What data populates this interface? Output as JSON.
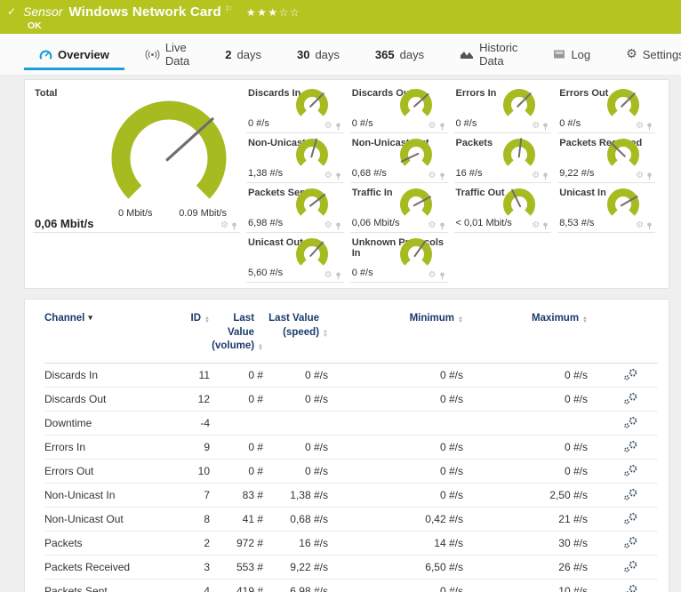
{
  "colors": {
    "header_green": "#b6c41f",
    "gauge_green": "#a6bb20",
    "needle_gray": "#6e6e6e",
    "accent_blue": "#1b9fd8",
    "table_header_blue": "#1b3a6b"
  },
  "header": {
    "check_icon": "✓",
    "kind_label": "Sensor",
    "title": "Windows Network Card",
    "flag_icon": "⚐",
    "priority_filled": 3,
    "priority_total": 5,
    "status": "OK"
  },
  "tabs": [
    {
      "label": "Overview",
      "icon": "gauge-icon",
      "active": true
    },
    {
      "label": "Live Data",
      "icon": "broadcast-icon",
      "active": false
    },
    {
      "prefix": "2",
      "label": "days",
      "active": false
    },
    {
      "prefix": "30",
      "label": "days",
      "active": false
    },
    {
      "prefix": "365",
      "label": "days",
      "active": false
    },
    {
      "label": "Historic Data",
      "icon": "chart-icon",
      "active": false
    },
    {
      "label": "Log",
      "icon": "log-icon",
      "active": false
    },
    {
      "label": "Settings",
      "icon": "gear-icon",
      "active": false
    }
  ],
  "overview": {
    "total": {
      "name": "Total",
      "value": "0,06 Mbit/s",
      "scale_min": "0 Mbit/s",
      "scale_max": "0.09 Mbit/s",
      "needle_deg": 42
    },
    "gauges": [
      {
        "name": "Discards In",
        "value": "0 #/s",
        "needle_deg": 45
      },
      {
        "name": "Discards Out",
        "value": "0 #/s",
        "needle_deg": 42
      },
      {
        "name": "Errors In",
        "value": "0 #/s",
        "needle_deg": 45
      },
      {
        "name": "Errors Out",
        "value": "0 #/s",
        "needle_deg": 45
      },
      {
        "name": "Non-Unicast In",
        "value": "1,38 #/s",
        "needle_deg": 74
      },
      {
        "name": "Non-Unicast Out",
        "value": "0,68 #/s",
        "needle_deg": 205
      },
      {
        "name": "Packets",
        "value": "16 #/s",
        "needle_deg": 83
      },
      {
        "name": "Packets Received",
        "value": "9,22 #/s",
        "needle_deg": 136
      },
      {
        "name": "Packets Sent",
        "value": "6,98 #/s",
        "needle_deg": 38
      },
      {
        "name": "Traffic In",
        "value": "0,06 Mbit/s",
        "needle_deg": 28
      },
      {
        "name": "Traffic Out",
        "value": "< 0,01 Mbit/s",
        "needle_deg": 116
      },
      {
        "name": "Unicast In",
        "value": "8,53 #/s",
        "needle_deg": 30
      },
      {
        "name": "Unicast Out",
        "value": "5,60 #/s",
        "needle_deg": 48
      },
      {
        "name": "Unknown Protocols In",
        "value": "0 #/s",
        "needle_deg": 55
      }
    ]
  },
  "table": {
    "columns": [
      {
        "label": "Channel",
        "align": "left",
        "sort": "active"
      },
      {
        "label": "ID",
        "align": "right",
        "sort": "both"
      },
      {
        "label": "Last Value\n(volume)",
        "align": "right",
        "sort": "both"
      },
      {
        "label": "Last Value\n(speed)",
        "align": "right",
        "sort": "both"
      },
      {
        "label": "Minimum",
        "align": "right",
        "sort": "both"
      },
      {
        "label": "Maximum",
        "align": "right",
        "sort": "both"
      }
    ],
    "rows": [
      {
        "channel": "Discards In",
        "id": "11",
        "volume": "0 #",
        "speed": "0 #/s",
        "min": "0 #/s",
        "max": "0 #/s"
      },
      {
        "channel": "Discards Out",
        "id": "12",
        "volume": "0 #",
        "speed": "0 #/s",
        "min": "0 #/s",
        "max": "0 #/s"
      },
      {
        "channel": "Downtime",
        "id": "-4",
        "volume": "",
        "speed": "",
        "min": "",
        "max": ""
      },
      {
        "channel": "Errors In",
        "id": "9",
        "volume": "0 #",
        "speed": "0 #/s",
        "min": "0 #/s",
        "max": "0 #/s"
      },
      {
        "channel": "Errors Out",
        "id": "10",
        "volume": "0 #",
        "speed": "0 #/s",
        "min": "0 #/s",
        "max": "0 #/s"
      },
      {
        "channel": "Non-Unicast In",
        "id": "7",
        "volume": "83 #",
        "speed": "1,38 #/s",
        "min": "0 #/s",
        "max": "2,50 #/s"
      },
      {
        "channel": "Non-Unicast Out",
        "id": "8",
        "volume": "41 #",
        "speed": "0,68 #/s",
        "min": "0,42 #/s",
        "max": "21 #/s"
      },
      {
        "channel": "Packets",
        "id": "2",
        "volume": "972 #",
        "speed": "16 #/s",
        "min": "14 #/s",
        "max": "30 #/s"
      },
      {
        "channel": "Packets Received",
        "id": "3",
        "volume": "553 #",
        "speed": "9,22 #/s",
        "min": "6,50 #/s",
        "max": "26 #/s"
      },
      {
        "channel": "Packets Sent",
        "id": "4",
        "volume": "419 #",
        "speed": "6,98 #/s",
        "min": "0 #/s",
        "max": "10 #/s"
      }
    ]
  }
}
